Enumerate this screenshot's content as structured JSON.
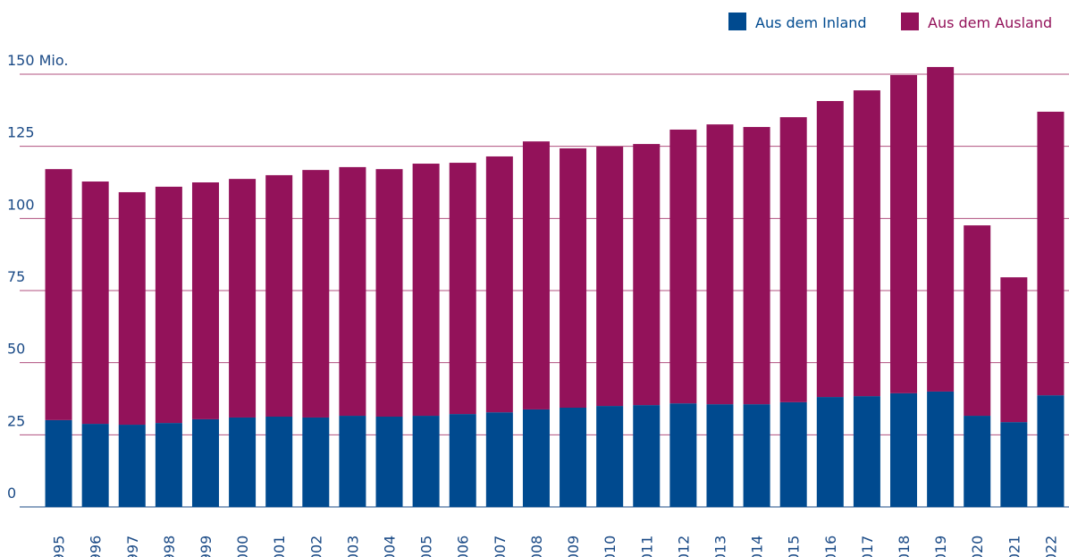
{
  "chart_data": {
    "type": "bar",
    "stacked": true,
    "categories": [
      "1995",
      "1996",
      "1997",
      "1998",
      "1999",
      "2000",
      "2001",
      "2002",
      "2003",
      "2004",
      "2005",
      "2006",
      "2007",
      "2008",
      "2009",
      "2010",
      "2011",
      "2012",
      "2013",
      "2014",
      "2015",
      "2016",
      "2017",
      "2018",
      "2019",
      "2020",
      "2021",
      "2022"
    ],
    "series": [
      {
        "name": "Aus dem Inland",
        "color": "#004a8f",
        "values": [
          30.1,
          28.8,
          28.5,
          29.1,
          30.4,
          31.0,
          31.3,
          31.0,
          31.6,
          31.3,
          31.6,
          32.2,
          32.8,
          33.8,
          34.4,
          35.0,
          35.3,
          35.9,
          35.6,
          35.6,
          36.3,
          38.1,
          38.4,
          39.4,
          40.0,
          31.6,
          29.4,
          38.7
        ]
      },
      {
        "name": "Aus dem Ausland",
        "color": "#93125a",
        "values": [
          87.0,
          84.0,
          80.6,
          81.9,
          82.1,
          82.7,
          83.7,
          85.8,
          86.2,
          85.8,
          87.4,
          87.1,
          88.7,
          92.9,
          89.9,
          89.9,
          90.5,
          94.9,
          97.0,
          96.1,
          98.8,
          102.6,
          106.0,
          110.3,
          112.5,
          66.0,
          50.2,
          98.3
        ]
      }
    ],
    "ylim": [
      0,
      150
    ],
    "yticks": [
      0,
      25,
      50,
      75,
      100,
      125,
      {
        "value": 150,
        "label": "150 Mio."
      }
    ],
    "grid": true,
    "legend": "top-right"
  }
}
